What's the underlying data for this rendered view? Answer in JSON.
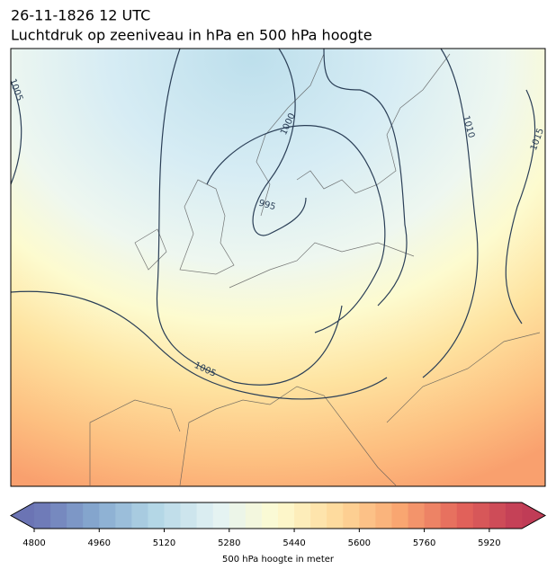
{
  "header": {
    "title": "26-11-1826 12 UTC",
    "subtitle": "Luchtdruk op zeeniveau in hPa en 500 hPa hoogte"
  },
  "map": {
    "contour_labels": [
      "1005",
      "1000",
      "1010",
      "1015",
      "995",
      "1005"
    ]
  },
  "colorbar": {
    "clim": [
      4800,
      6000
    ],
    "ticks": [
      4800,
      4960,
      5120,
      5280,
      5440,
      5600,
      5760,
      5920
    ],
    "label": "500 hPa hoogte in meter"
  }
}
